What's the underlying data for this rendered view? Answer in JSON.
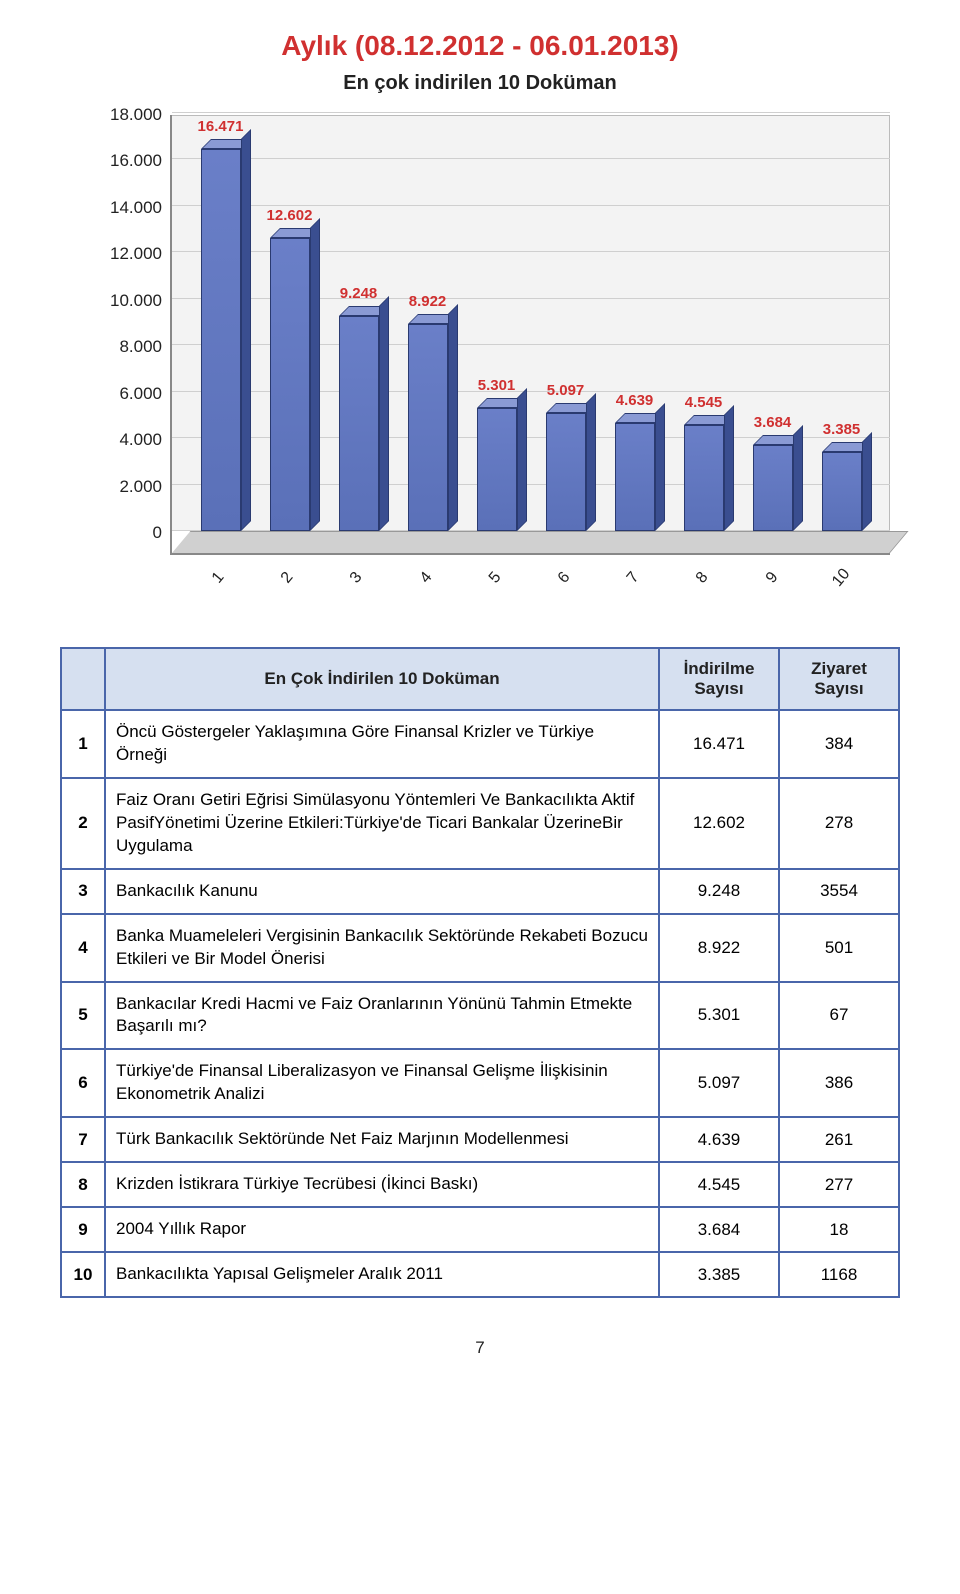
{
  "header": {
    "main_title": "Aylık (08.12.2012 - 06.01.2013)",
    "sub_title": "En çok indirilen 10 Doküman"
  },
  "chart": {
    "type": "bar",
    "y_ticks": [
      "0",
      "2.000",
      "4.000",
      "6.000",
      "8.000",
      "10.000",
      "12.000",
      "14.000",
      "16.000",
      "18.000"
    ],
    "y_max": 18000,
    "x_categories": [
      "1",
      "2",
      "3",
      "4",
      "5",
      "6",
      "7",
      "8",
      "9",
      "10"
    ],
    "values": [
      16471,
      12602,
      9248,
      8922,
      5301,
      5097,
      4639,
      4545,
      3684,
      3385
    ],
    "value_labels": [
      "16.471",
      "12.602",
      "9.248",
      "8.922",
      "5.301",
      "5.097",
      "4.639",
      "4.545",
      "3.684",
      "3.385"
    ],
    "bar_front_color": "#5a70b8",
    "bar_top_color": "#8a9ad4",
    "bar_side_color": "#3a4e90",
    "bar_border_color": "#2a3a70",
    "label_color": "#d03030",
    "grid_color": "#cfcfcf",
    "background_color": "#f3f3f3",
    "floor_color": "#d0d0d0"
  },
  "table": {
    "header": {
      "name": "En Çok İndirilen 10 Doküman",
      "downloads": "İndirilme Sayısı",
      "visits": "Ziyaret Sayısı"
    },
    "rows": [
      {
        "idx": "1",
        "name": "Öncü Göstergeler Yaklaşımına Göre Finansal Krizler ve Türkiye Örneği",
        "downloads": "16.471",
        "visits": "384"
      },
      {
        "idx": "2",
        "name": "Faiz Oranı Getiri Eğrisi Simülasyonu Yöntemleri Ve Bankacılıkta Aktif PasifYönetimi Üzerine Etkileri:Türkiye'de Ticari Bankalar ÜzerineBir Uygulama",
        "downloads": "12.602",
        "visits": "278"
      },
      {
        "idx": "3",
        "name": "Bankacılık Kanunu",
        "downloads": "9.248",
        "visits": "3554"
      },
      {
        "idx": "4",
        "name": "Banka Muameleleri Vergisinin Bankacılık Sektöründe Rekabeti Bozucu Etkileri ve Bir Model Önerisi",
        "downloads": "8.922",
        "visits": "501"
      },
      {
        "idx": "5",
        "name": "Bankacılar Kredi Hacmi ve Faiz Oranlarının Yönünü Tahmin Etmekte Başarılı mı?",
        "downloads": "5.301",
        "visits": "67"
      },
      {
        "idx": "6",
        "name": "Türkiye'de Finansal Liberalizasyon ve Finansal Gelişme İlişkisinin Ekonometrik Analizi",
        "downloads": "5.097",
        "visits": "386"
      },
      {
        "idx": "7",
        "name": "Türk Bankacılık Sektöründe Net Faiz Marjının Modellenmesi",
        "downloads": "4.639",
        "visits": "261"
      },
      {
        "idx": "8",
        "name": "Krizden İstikrara Türkiye Tecrübesi (İkinci Baskı)",
        "downloads": "4.545",
        "visits": "277"
      },
      {
        "idx": "9",
        "name": "2004 Yıllık Rapor",
        "downloads": "3.684",
        "visits": "18"
      },
      {
        "idx": "10",
        "name": "Bankacılıkta Yapısal Gelişmeler Aralık 2011",
        "downloads": "3.385",
        "visits": "1168"
      }
    ]
  },
  "footer": {
    "page_number": "7"
  }
}
